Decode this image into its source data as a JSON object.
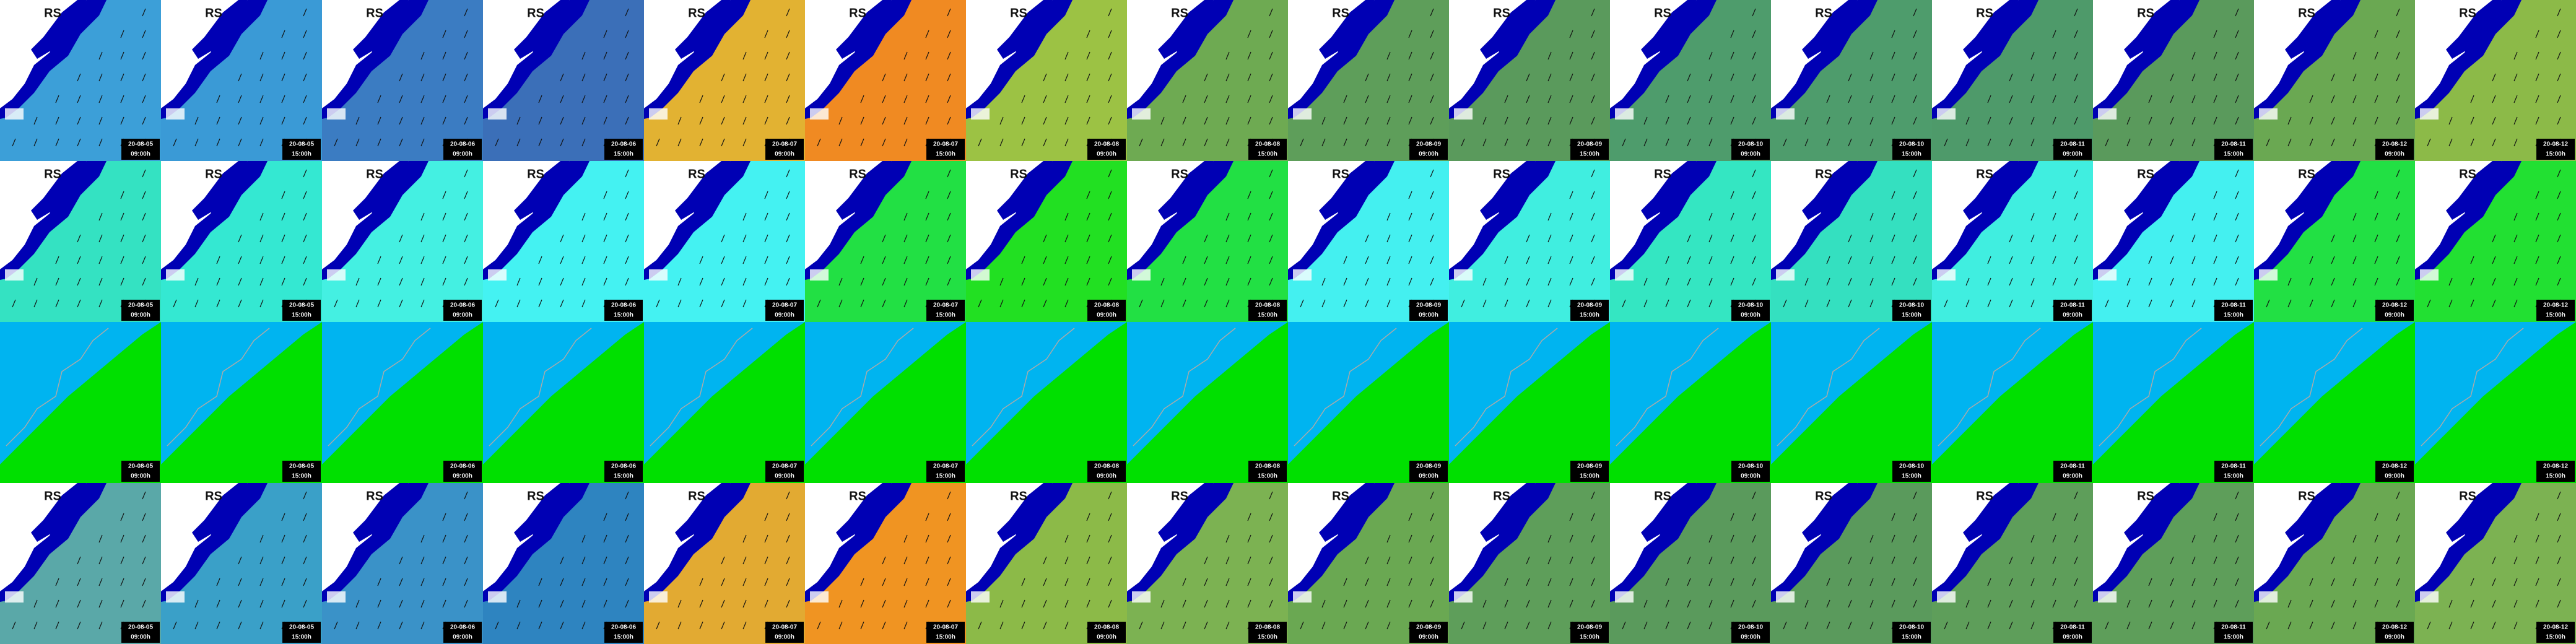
{
  "columns": [
    {
      "date": "20-08-05",
      "time": "09:00h"
    },
    {
      "date": "20-08-05",
      "time": "15:00h"
    },
    {
      "date": "20-08-06",
      "time": "09:00h"
    },
    {
      "date": "20-08-06",
      "time": "15:00h"
    },
    {
      "date": "20-08-07",
      "time": "09:00h"
    },
    {
      "date": "20-08-07",
      "time": "15:00h"
    },
    {
      "date": "20-08-08",
      "time": "09:00h"
    },
    {
      "date": "20-08-08",
      "time": "15:00h"
    },
    {
      "date": "20-08-09",
      "time": "09:00h"
    },
    {
      "date": "20-08-09",
      "time": "15:00h"
    },
    {
      "date": "20-08-10",
      "time": "09:00h"
    },
    {
      "date": "20-08-10",
      "time": "15:00h"
    },
    {
      "date": "20-08-11",
      "time": "09:00h"
    },
    {
      "date": "20-08-11",
      "time": "15:00h"
    },
    {
      "date": "20-08-12",
      "time": "09:00h"
    },
    {
      "date": "20-08-12",
      "time": "15:00h"
    }
  ],
  "rows": [
    {
      "label": "RS",
      "colors": [
        "#3c9fd8",
        "#3a9ad6",
        "#3b7cc2",
        "#3b6fb8",
        "#e2b232",
        "#f08a22",
        "#9cc244",
        "#6eaa52",
        "#5e9e5a",
        "#5a9a5c",
        "#4e9c6c",
        "#4e9c6c",
        "#4e9a6a",
        "#5a9a5c",
        "#6aa852",
        "#8cba48"
      ]
    },
    {
      "label": "RS",
      "colors": [
        "#34e2c2",
        "#34e8d2",
        "#44f0e2",
        "#44f2f2",
        "#44f2f2",
        "#22e044",
        "#22e022",
        "#22e044",
        "#44f0f0",
        "#40eee0",
        "#34e6c2",
        "#34e0c0",
        "#40eee0",
        "#44f0f0",
        "#22e044",
        "#22e032"
      ]
    },
    {
      "colors": [
        "#00e000",
        "#00e000",
        "#00e000",
        "#00e000",
        "#00e000",
        "#00e000",
        "#00e000",
        "#00e000",
        "#00e000",
        "#00e000",
        "#00e000",
        "#00e000",
        "#00e000",
        "#00e000",
        "#00e000",
        "#00e000"
      ]
    },
    {
      "label": "RS",
      "colors": [
        "#5aa8a8",
        "#3aa0c8",
        "#3a92c8",
        "#2e84c0",
        "#e2aa32",
        "#f09422",
        "#8cba48",
        "#7cb252",
        "#6aa852",
        "#5e9e5a",
        "#5a9a5c",
        "#5a9a5c",
        "#5e9e5a",
        "#5e9e5a",
        "#6aa852",
        "#7cb252"
      ]
    }
  ]
}
